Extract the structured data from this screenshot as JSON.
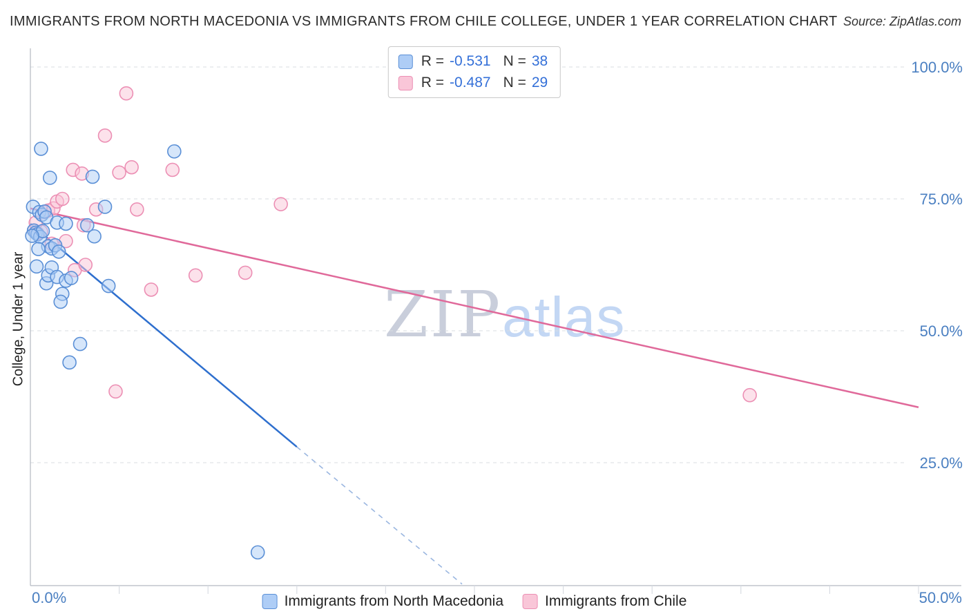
{
  "chart_data": {
    "type": "scatter",
    "title": "IMMIGRANTS FROM NORTH MACEDONIA VS IMMIGRANTS FROM CHILE COLLEGE, UNDER 1 YEAR CORRELATION CHART",
    "source": "Source: ZipAtlas.com",
    "ylabel": "College, Under 1 year",
    "watermark": {
      "part1": "ZIP",
      "part2": "atlas"
    },
    "xlim": [
      0,
      50
    ],
    "ylim": [
      0,
      100
    ],
    "grid": true,
    "legend_position": "top-center",
    "axis_color": "#b3b9c2",
    "grid_color": "#d8dce2",
    "tick_label_color": "#4a7fc1",
    "x_tick_labels": {
      "left": "0.0%",
      "right": "50.0%"
    },
    "y_ticks": [
      {
        "value": 100,
        "label": "100.0%"
      },
      {
        "value": 75,
        "label": "75.0%"
      },
      {
        "value": 50,
        "label": "50.0%"
      },
      {
        "value": 25,
        "label": "25.0%"
      }
    ],
    "legend": {
      "r_label": "R =",
      "n_label": "N =",
      "number_color": "#3470d8"
    },
    "series": [
      {
        "name": "Immigrants from North Macedonia",
        "R": "-0.531",
        "N": "38",
        "fill_color": "#aecdf6",
        "stroke_color": "#5a8fd6",
        "line_color": "#2e6fce",
        "trend": {
          "solid": [
            [
              0,
              70.3
            ],
            [
              15,
              28
            ]
          ],
          "dashed": [
            [
              15,
              28
            ],
            [
              24.3,
              2
            ]
          ]
        },
        "points": [
          [
            0.6,
            84.5
          ],
          [
            1.1,
            79.0
          ],
          [
            3.5,
            79.2
          ],
          [
            8.1,
            84.0
          ],
          [
            0.15,
            73.5
          ],
          [
            0.5,
            72.5
          ],
          [
            0.65,
            72.0
          ],
          [
            0.8,
            72.6
          ],
          [
            0.9,
            71.5
          ],
          [
            1.5,
            70.5
          ],
          [
            2.0,
            70.3
          ],
          [
            3.2,
            70.0
          ],
          [
            4.2,
            73.5
          ],
          [
            0.2,
            69.0
          ],
          [
            0.3,
            68.6
          ],
          [
            0.4,
            68.3
          ],
          [
            0.55,
            67.8
          ],
          [
            0.7,
            68.9
          ],
          [
            1.0,
            66.0
          ],
          [
            1.2,
            65.6
          ],
          [
            1.4,
            66.2
          ],
          [
            1.6,
            65.0
          ],
          [
            3.6,
            67.9
          ],
          [
            0.35,
            62.2
          ],
          [
            0.9,
            59.0
          ],
          [
            1.0,
            60.5
          ],
          [
            1.2,
            62.0
          ],
          [
            1.5,
            60.2
          ],
          [
            2.0,
            59.5
          ],
          [
            2.3,
            60.0
          ],
          [
            1.8,
            57.0
          ],
          [
            1.7,
            55.5
          ],
          [
            2.2,
            44.0
          ],
          [
            2.8,
            47.5
          ],
          [
            4.4,
            58.5
          ],
          [
            12.8,
            8.0
          ],
          [
            0.1,
            68.0
          ],
          [
            0.45,
            65.5
          ]
        ]
      },
      {
        "name": "Immigrants from Chile",
        "R": "-0.487",
        "N": "29",
        "fill_color": "#f9c6d8",
        "stroke_color": "#ec8fb4",
        "line_color": "#e0699a",
        "trend": {
          "solid": [
            [
              0,
              73.2
            ],
            [
              50,
              35.5
            ]
          ]
        },
        "points": [
          [
            5.4,
            95.0
          ],
          [
            4.2,
            87.0
          ],
          [
            2.4,
            80.5
          ],
          [
            2.9,
            79.8
          ],
          [
            5.0,
            80.0
          ],
          [
            5.7,
            81.0
          ],
          [
            8.0,
            80.5
          ],
          [
            14.1,
            74.0
          ],
          [
            6.0,
            73.0
          ],
          [
            0.2,
            69.0
          ],
          [
            0.4,
            68.5
          ],
          [
            0.6,
            68.8
          ],
          [
            0.8,
            72.5
          ],
          [
            1.0,
            72.8
          ],
          [
            1.3,
            73.2
          ],
          [
            1.5,
            74.5
          ],
          [
            1.8,
            75.0
          ],
          [
            1.2,
            66.5
          ],
          [
            2.0,
            67.0
          ],
          [
            3.0,
            70.0
          ],
          [
            3.7,
            73.0
          ],
          [
            0.3,
            70.5
          ],
          [
            2.5,
            61.5
          ],
          [
            3.1,
            62.5
          ],
          [
            9.3,
            60.5
          ],
          [
            12.1,
            61.0
          ],
          [
            6.8,
            57.8
          ],
          [
            4.8,
            38.5
          ],
          [
            40.5,
            37.8
          ]
        ]
      }
    ]
  }
}
